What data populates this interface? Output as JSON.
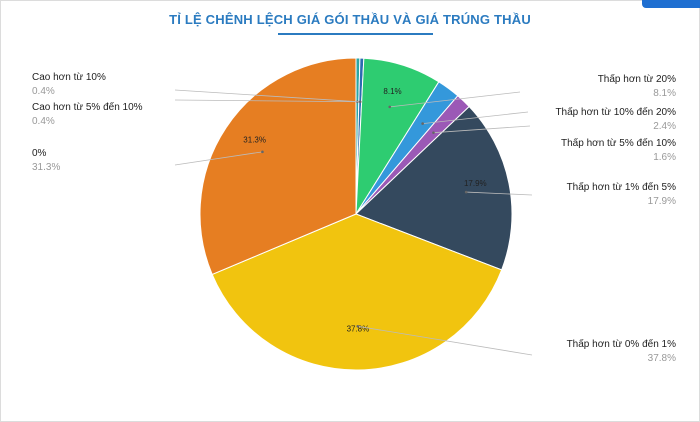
{
  "chart_data": {
    "type": "pie",
    "title": "TỈ LỆ CHÊNH LỆCH GIÁ GÓI THẦU VÀ GIÁ TRÚNG THẦU",
    "legend": "none",
    "slices": [
      {
        "name": "Cao hơn từ 10%",
        "value": 0.4,
        "label": "0.4%",
        "slice_label": "",
        "color": "#2ca6a4"
      },
      {
        "name": "Cao hơn từ 5% đến 10%",
        "value": 0.4,
        "label": "0.4%",
        "slice_label": "",
        "color": "#2b6cb0"
      },
      {
        "name": "Thấp hơn từ 20%",
        "value": 8.1,
        "label": "8.1%",
        "slice_label": "8.1%",
        "color": "#2ecc71"
      },
      {
        "name": "Thấp hơn từ 10% đến 20%",
        "value": 2.4,
        "label": "2.4%",
        "slice_label": "",
        "color": "#3498db"
      },
      {
        "name": "Thấp hơn từ 5% đến 10%",
        "value": 1.6,
        "label": "1.6%",
        "slice_label": "",
        "color": "#9b59b6"
      },
      {
        "name": "Thấp hơn từ 1% đến 5%",
        "value": 17.9,
        "label": "17.9%",
        "slice_label": "17.9%",
        "color": "#34495e"
      },
      {
        "name": "Thấp hơn từ 0% đến 1%",
        "value": 37.8,
        "label": "37.8%",
        "slice_label": "37.8%",
        "color": "#f1c40f"
      },
      {
        "name": "0%",
        "value": 31.3,
        "label": "31.3%",
        "slice_label": "31.3%",
        "color": "#e67e22"
      }
    ]
  }
}
